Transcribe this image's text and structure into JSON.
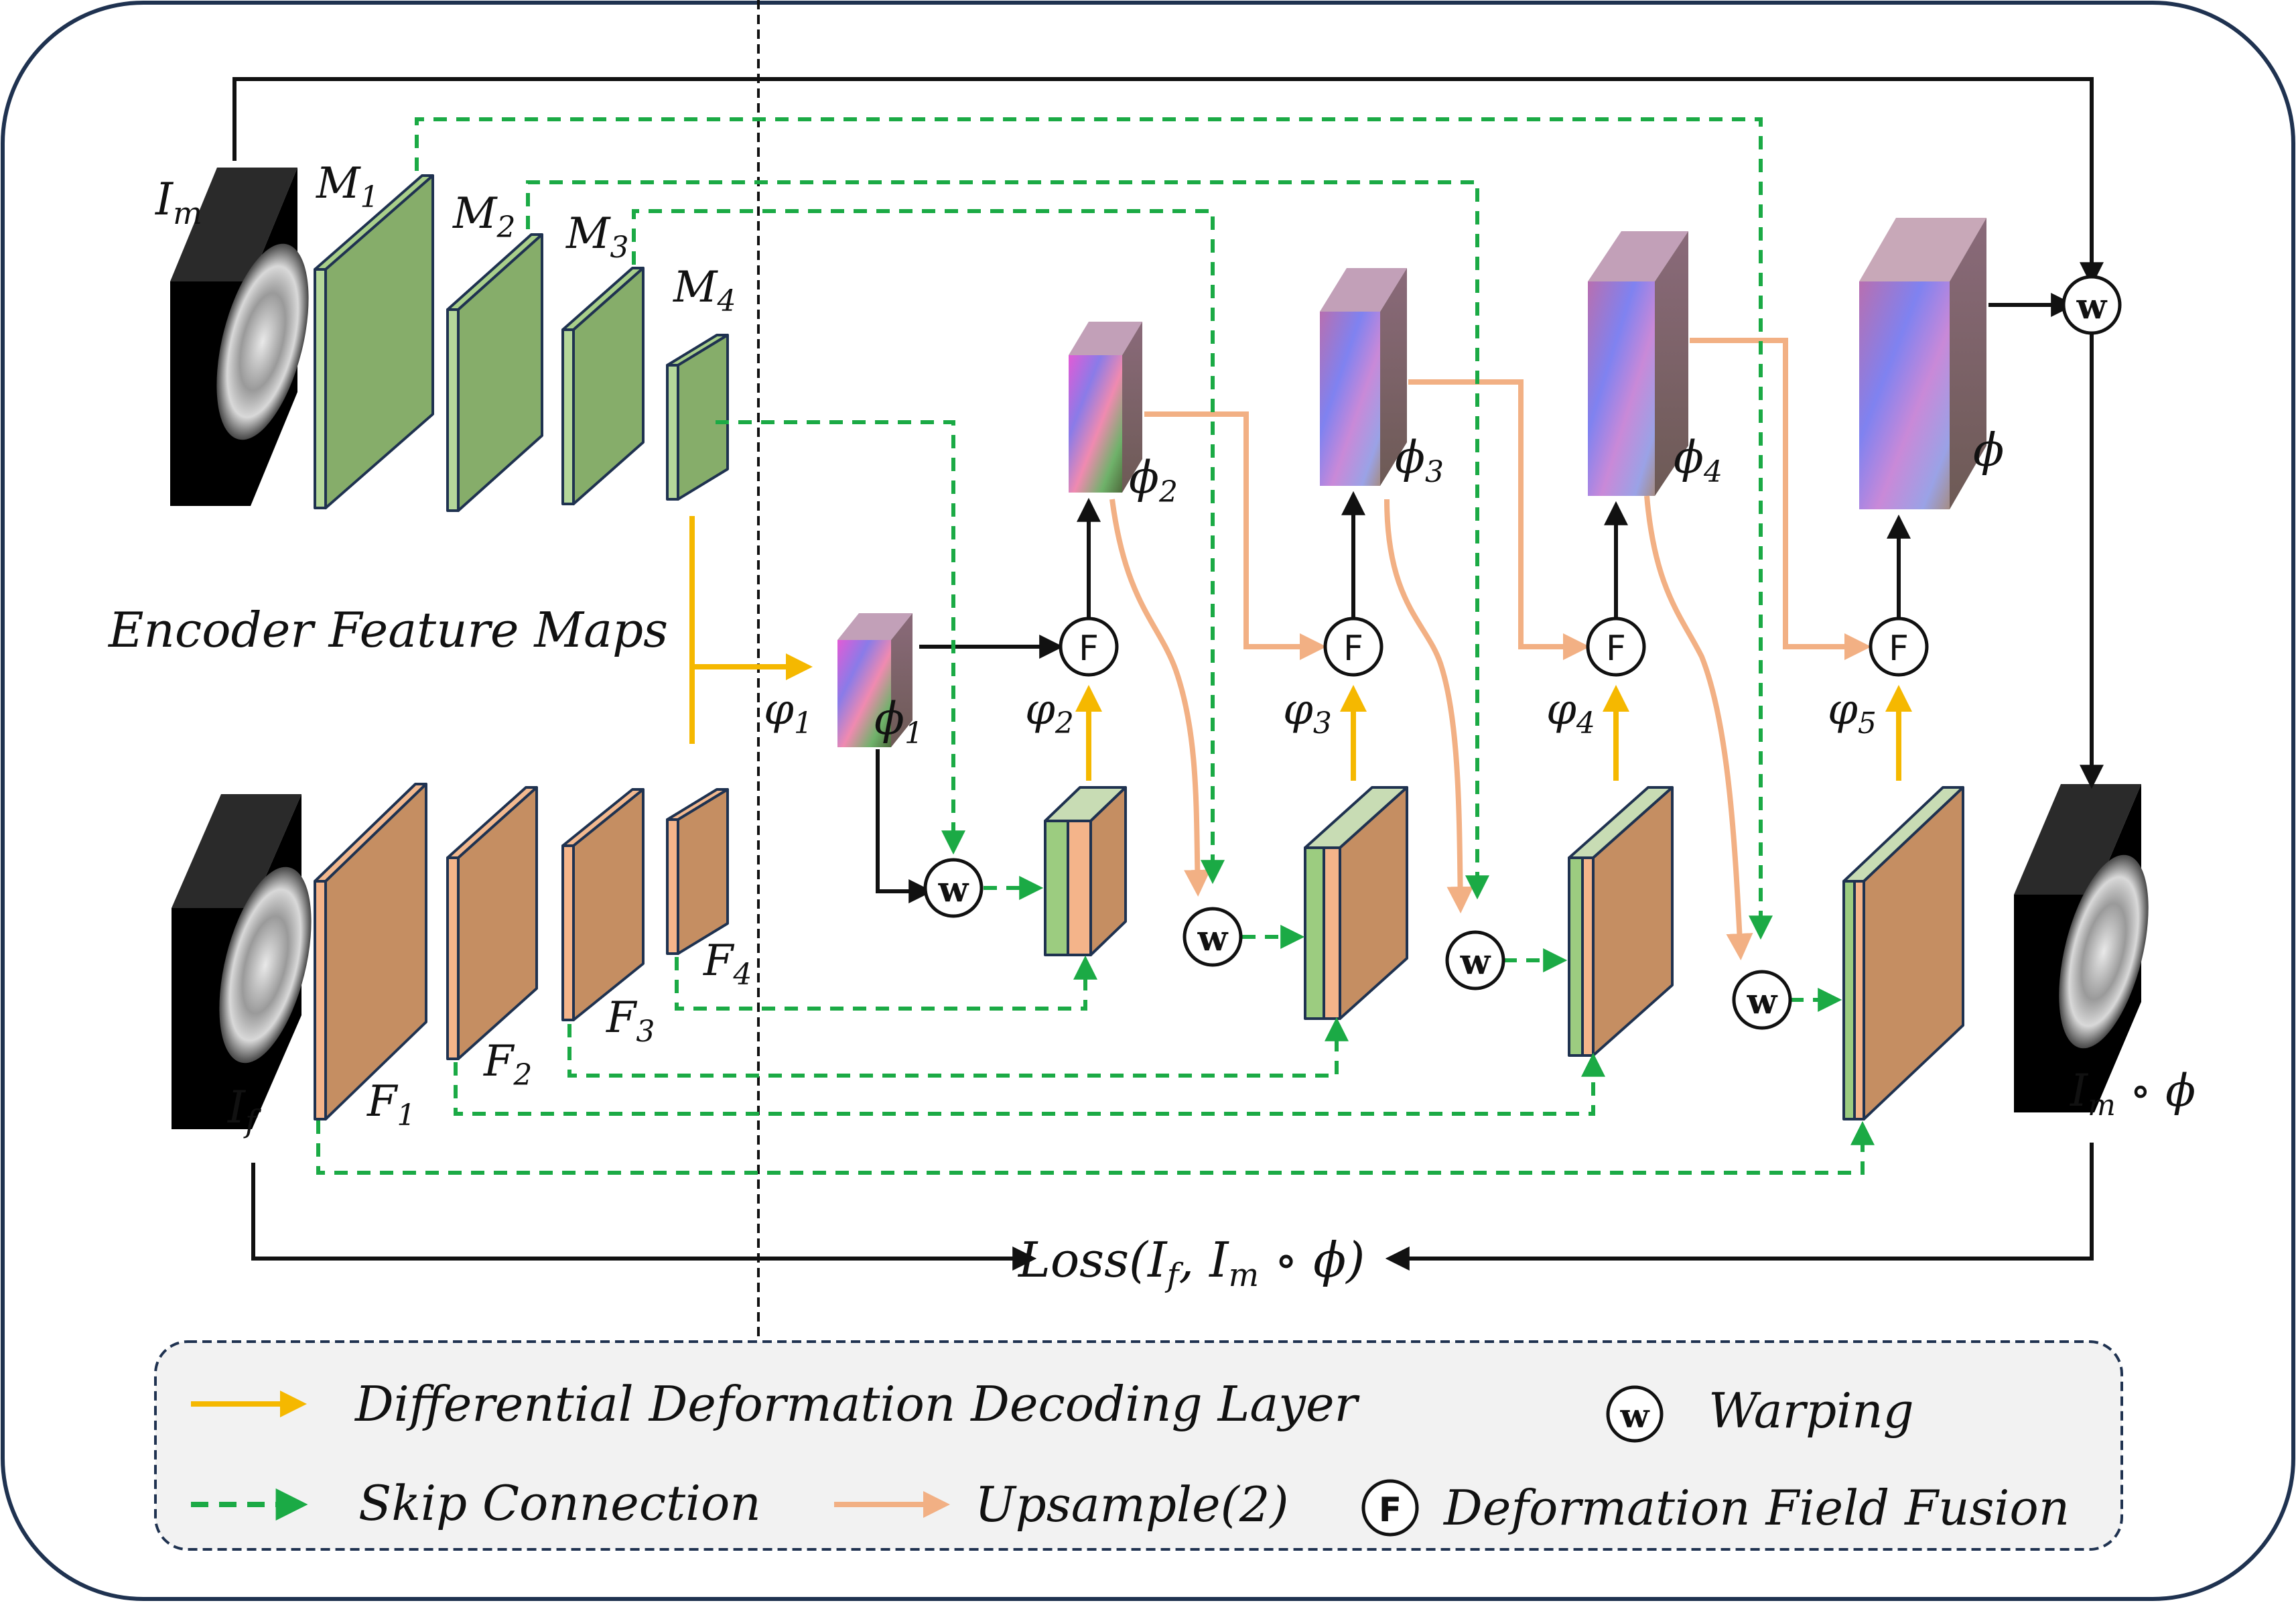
{
  "encoder_label": "Encoder Feature Maps",
  "moving": {
    "image_symbol": "I",
    "image_subscript": "m",
    "maps": [
      {
        "symbol": "M",
        "subscript": "1"
      },
      {
        "symbol": "M",
        "subscript": "2"
      },
      {
        "symbol": "M",
        "subscript": "3"
      },
      {
        "symbol": "M",
        "subscript": "4"
      }
    ]
  },
  "fixed": {
    "image_symbol": "I",
    "image_subscript": "f",
    "maps": [
      {
        "symbol": "F",
        "subscript": "1"
      },
      {
        "symbol": "F",
        "subscript": "2"
      },
      {
        "symbol": "F",
        "subscript": "3"
      },
      {
        "symbol": "F",
        "subscript": "4"
      }
    ]
  },
  "deformation_fields": [
    {
      "symbol": "ϕ",
      "subscript": "1"
    },
    {
      "symbol": "ϕ",
      "subscript": "2"
    },
    {
      "symbol": "ϕ",
      "subscript": "3"
    },
    {
      "symbol": "ϕ",
      "subscript": "4"
    }
  ],
  "final_field": "ϕ",
  "decoding_steps": [
    {
      "symbol": "φ",
      "subscript": "1"
    },
    {
      "symbol": "φ",
      "subscript": "2"
    },
    {
      "symbol": "φ",
      "subscript": "3"
    },
    {
      "symbol": "φ",
      "subscript": "4"
    },
    {
      "symbol": "φ",
      "subscript": "5"
    }
  ],
  "warped_output": {
    "symbol": "I",
    "subscript": "m",
    "rest": " ∘ ϕ"
  },
  "loss": {
    "prefix": "Loss(I",
    "sub1": "f",
    "mid": ", I",
    "sub2": "m",
    "suffix": " ∘ ϕ)"
  },
  "operator_glyphs": {
    "warp": "w",
    "fusion": "F"
  },
  "legend": {
    "yellow_arrow": "Differential Deformation Decoding Layer",
    "green_dashed_arrow": "Skip Connection",
    "orange_arrow": "Upsample(2)",
    "warp_symbol": "Warping",
    "fusion_symbol": "Deformation Field Fusion"
  },
  "colors": {
    "yellow": "#F5B800",
    "green": "#1BAA45",
    "orange": "#F2B084",
    "feature_green": "#86AD6A",
    "feature_orange": "#C58E62",
    "frame": "#1F3250",
    "legend_bg": "#F2F2F2"
  }
}
